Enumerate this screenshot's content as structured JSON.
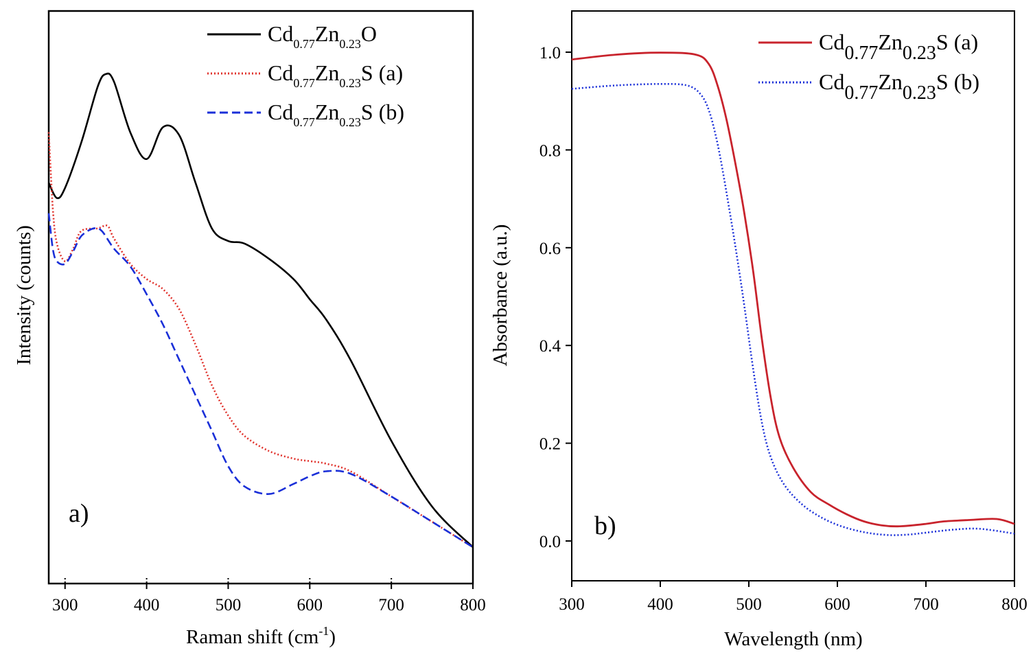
{
  "chart_data": [
    {
      "type": "line",
      "panel_label": "a)",
      "xlabel_main": "Raman shift (cm",
      "xlabel_sup": "-1",
      "xlabel_end": ")",
      "ylabel": "Intensity (counts)",
      "xlim": [
        280,
        800
      ],
      "ylim": [
        0,
        1
      ],
      "y_tick_labels": false,
      "xticks": [
        300,
        400,
        500,
        600,
        700,
        800
      ],
      "legend": "top-right",
      "series": [
        {
          "name": "Cd0.77Zn0.23O",
          "label_base": "Cd",
          "label_sub1": "0.77",
          "label_mid": "Zn",
          "label_sub2": "0.23",
          "label_end": "O",
          "color": "#000000",
          "dash": "solid",
          "x": [
            280,
            290,
            300,
            320,
            340,
            350,
            360,
            380,
            400,
            420,
            440,
            460,
            480,
            500,
            520,
            550,
            580,
            600,
            620,
            650,
            700,
            750,
            800
          ],
          "y": [
            0.72,
            0.69,
            0.71,
            0.8,
            0.91,
            0.935,
            0.92,
            0.82,
            0.767,
            0.83,
            0.814,
            0.72,
            0.63,
            0.605,
            0.6,
            0.57,
            0.53,
            0.49,
            0.45,
            0.37,
            0.21,
            0.08,
            0.0
          ]
        },
        {
          "name": "Cd0.77Zn0.23S (a)",
          "label_base": "Cd",
          "label_sub1": "0.77",
          "label_mid": "Zn",
          "label_sub2": "0.23",
          "label_end": "S (a)",
          "color": "#e0302a",
          "dash": "dotted",
          "x": [
            280,
            285,
            290,
            300,
            310,
            320,
            340,
            352,
            360,
            380,
            400,
            420,
            440,
            460,
            480,
            500,
            520,
            550,
            580,
            600,
            620,
            650,
            700,
            750,
            800
          ],
          "y": [
            0.82,
            0.67,
            0.6,
            0.565,
            0.59,
            0.625,
            0.63,
            0.635,
            0.61,
            0.56,
            0.53,
            0.51,
            0.47,
            0.4,
            0.32,
            0.26,
            0.22,
            0.19,
            0.175,
            0.17,
            0.165,
            0.15,
            0.1,
            0.05,
            0.0
          ]
        },
        {
          "name": "Cd0.77Zn0.23S (b)",
          "label_base": "Cd",
          "label_sub1": "0.77",
          "label_mid": "Zn",
          "label_sub2": "0.23",
          "label_end": "S (b)",
          "color": "#1a2fd8",
          "dash": "dashed",
          "x": [
            280,
            285,
            290,
            300,
            310,
            320,
            335,
            345,
            360,
            380,
            400,
            420,
            440,
            460,
            480,
            500,
            520,
            550,
            580,
            600,
            620,
            650,
            700,
            750,
            800
          ],
          "y": [
            0.66,
            0.59,
            0.565,
            0.56,
            0.585,
            0.615,
            0.63,
            0.625,
            0.59,
            0.555,
            0.5,
            0.44,
            0.37,
            0.3,
            0.23,
            0.16,
            0.12,
            0.105,
            0.125,
            0.14,
            0.15,
            0.145,
            0.1,
            0.05,
            0.0
          ]
        }
      ]
    },
    {
      "type": "line",
      "panel_label": "b)",
      "xlabel": "Wavelength (nm)",
      "ylabel": "Absorbance (a.u.)",
      "xlim": [
        300,
        800
      ],
      "ylim": [
        -0.08,
        1.08
      ],
      "xticks": [
        300,
        400,
        500,
        600,
        700,
        800
      ],
      "yticks": [
        0.0,
        0.2,
        0.4,
        0.6,
        0.8,
        1.0
      ],
      "y_tick_labels_text": [
        "0.0",
        "0.2",
        "0.4",
        "0.6",
        "0.8",
        "1.0"
      ],
      "legend": "top-right",
      "series": [
        {
          "name": "Cd0.77Zn0.23S (a)",
          "label_base": "Cd",
          "label_sub1": "0.77",
          "label_mid": "Zn",
          "label_sub2": "0.23",
          "label_end": "S (a)",
          "color": "#c8232c",
          "dash": "solid",
          "x": [
            300,
            350,
            400,
            440,
            455,
            465,
            475,
            485,
            495,
            505,
            515,
            525,
            535,
            550,
            570,
            590,
            610,
            630,
            650,
            670,
            700,
            720,
            750,
            780,
            800
          ],
          "y": [
            0.985,
            0.995,
            0.999,
            0.995,
            0.975,
            0.93,
            0.86,
            0.77,
            0.67,
            0.55,
            0.41,
            0.29,
            0.21,
            0.15,
            0.1,
            0.075,
            0.055,
            0.04,
            0.032,
            0.03,
            0.035,
            0.04,
            0.043,
            0.045,
            0.035
          ]
        },
        {
          "name": "Cd0.77Zn0.23S (b)",
          "label_base": "Cd",
          "label_sub1": "0.77",
          "label_mid": "Zn",
          "label_sub2": "0.23",
          "label_end": "S (b)",
          "color": "#1a2fd8",
          "dash": "dotted",
          "x": [
            300,
            350,
            400,
            430,
            445,
            455,
            465,
            475,
            485,
            495,
            505,
            515,
            525,
            540,
            560,
            580,
            600,
            620,
            640,
            660,
            680,
            700,
            730,
            760,
            800
          ],
          "y": [
            0.925,
            0.932,
            0.935,
            0.932,
            0.915,
            0.88,
            0.81,
            0.71,
            0.6,
            0.48,
            0.35,
            0.24,
            0.17,
            0.115,
            0.075,
            0.05,
            0.033,
            0.022,
            0.015,
            0.012,
            0.013,
            0.017,
            0.023,
            0.025,
            0.015
          ]
        }
      ]
    }
  ]
}
